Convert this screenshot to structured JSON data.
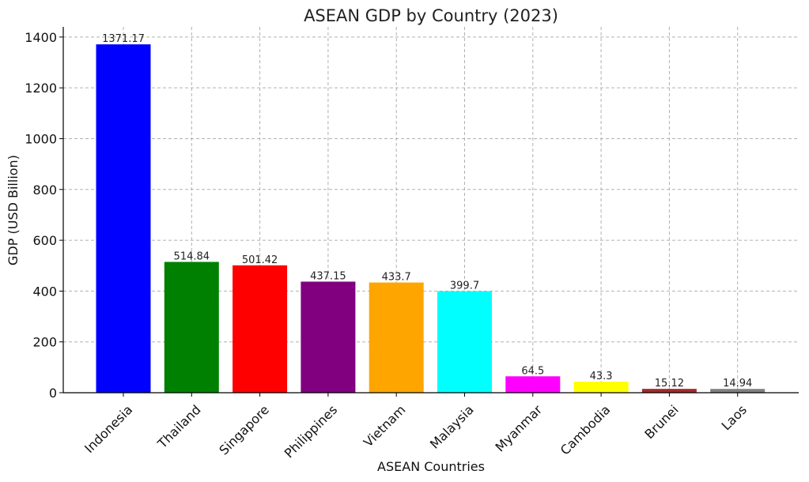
{
  "chart_data": {
    "type": "bar",
    "title": "ASEAN GDP by Country (2023)",
    "xlabel": "ASEAN Countries",
    "ylabel": "GDP (USD Billion)",
    "categories": [
      "Indonesia",
      "Thailand",
      "Singapore",
      "Philippines",
      "Vietnam",
      "Malaysia",
      "Myanmar",
      "Cambodia",
      "Brunei",
      "Laos"
    ],
    "values": [
      1371.17,
      514.84,
      501.42,
      437.15,
      433.7,
      399.7,
      64.5,
      43.3,
      15.12,
      14.94
    ],
    "value_labels": [
      "1371.17",
      "514.84",
      "501.42",
      "437.15",
      "433.7",
      "399.7",
      "64.5",
      "43.3",
      "15.12",
      "14.94"
    ],
    "colors": [
      "#0000ff",
      "#008000",
      "#ff0000",
      "#800080",
      "#ffa500",
      "#00ffff",
      "#ff00ff",
      "#ffff00",
      "#a52a2a",
      "#808080"
    ],
    "yticks": [
      0,
      200,
      400,
      600,
      800,
      1000,
      1200,
      1400
    ],
    "ylim": [
      0,
      1440
    ],
    "grid": true
  }
}
